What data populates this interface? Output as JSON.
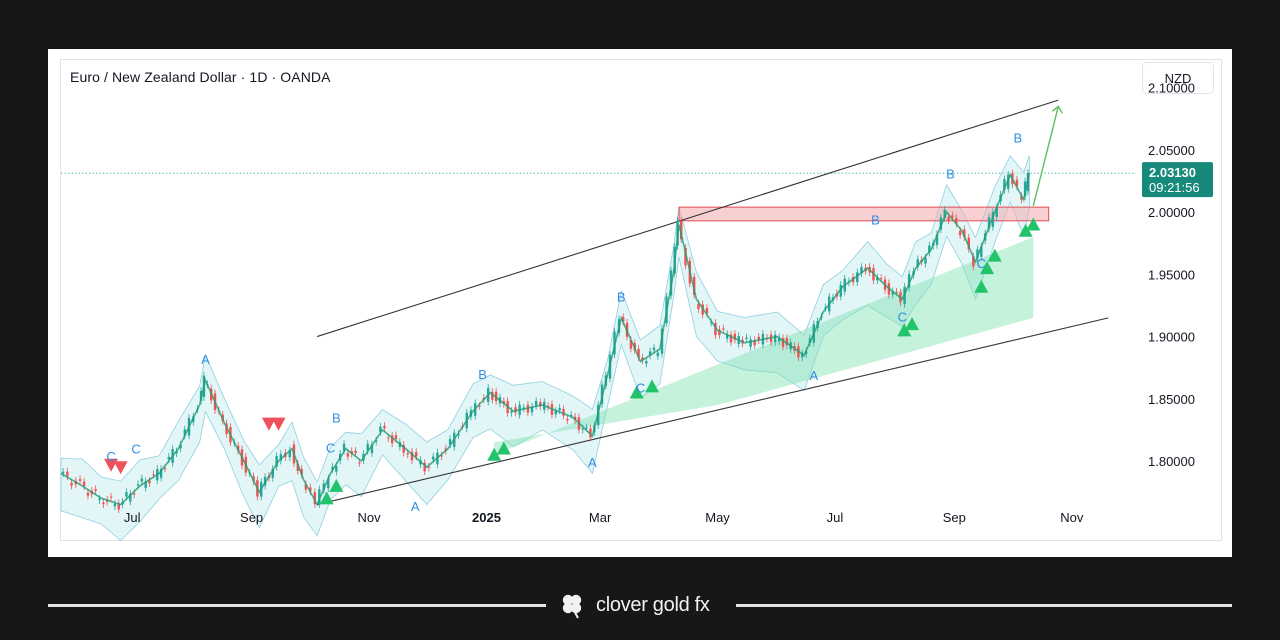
{
  "header": {
    "title": "Euro / New Zealand Dollar · 1D · OANDA",
    "currency": "NZD"
  },
  "price_tag": {
    "price": "2.03130",
    "countdown": "09:21:56",
    "color": "#16897a"
  },
  "footer": {
    "brand": "clover gold fx"
  },
  "chart_data": {
    "type": "line",
    "symbol": "EURNZD",
    "timeframe": "1D",
    "ylim": [
      1.755,
      2.115
    ],
    "y_ticks": [
      "2.10000",
      "2.05000",
      "2.00000",
      "1.95000",
      "1.90000",
      "1.85000",
      "1.80000"
    ],
    "y_tick_values": [
      2.1,
      2.05,
      2.0,
      1.95,
      1.9,
      1.85,
      1.8
    ],
    "xlim": [
      "2024-05-25",
      "2025-11-25"
    ],
    "x_ticks": [
      {
        "label": "Jul",
        "date": "2024-07-01",
        "bold": false
      },
      {
        "label": "Sep",
        "date": "2024-09-01",
        "bold": false
      },
      {
        "label": "Nov",
        "date": "2024-11-01",
        "bold": false
      },
      {
        "label": "2025",
        "date": "2025-01-01",
        "bold": true
      },
      {
        "label": "Mar",
        "date": "2025-03-01",
        "bold": false
      },
      {
        "label": "May",
        "date": "2025-05-01",
        "bold": false
      },
      {
        "label": "Jul",
        "date": "2025-07-01",
        "bold": false
      },
      {
        "label": "Sep",
        "date": "2025-09-01",
        "bold": false
      },
      {
        "label": "Nov",
        "date": "2025-11-01",
        "bold": false
      }
    ],
    "price_series": [
      [
        "2024-05-25",
        1.79
      ],
      [
        "2024-06-05",
        1.78
      ],
      [
        "2024-06-15",
        1.77
      ],
      [
        "2024-06-25",
        1.765
      ],
      [
        "2024-07-05",
        1.78
      ],
      [
        "2024-07-15",
        1.79
      ],
      [
        "2024-07-25",
        1.81
      ],
      [
        "2024-08-05",
        1.845
      ],
      [
        "2024-08-08",
        1.865
      ],
      [
        "2024-08-18",
        1.83
      ],
      [
        "2024-08-28",
        1.8
      ],
      [
        "2024-09-05",
        1.775
      ],
      [
        "2024-09-15",
        1.8
      ],
      [
        "2024-09-22",
        1.81
      ],
      [
        "2024-09-28",
        1.785
      ],
      [
        "2024-10-05",
        1.765
      ],
      [
        "2024-10-12",
        1.79
      ],
      [
        "2024-10-20",
        1.81
      ],
      [
        "2024-10-28",
        1.8
      ],
      [
        "2024-11-08",
        1.825
      ],
      [
        "2024-11-20",
        1.81
      ],
      [
        "2024-12-01",
        1.795
      ],
      [
        "2024-12-12",
        1.81
      ],
      [
        "2024-12-25",
        1.84
      ],
      [
        "2025-01-03",
        1.855
      ],
      [
        "2025-01-15",
        1.84
      ],
      [
        "2025-01-30",
        1.845
      ],
      [
        "2025-02-15",
        1.835
      ],
      [
        "2025-02-25",
        1.82
      ],
      [
        "2025-03-05",
        1.87
      ],
      [
        "2025-03-12",
        1.915
      ],
      [
        "2025-03-22",
        1.88
      ],
      [
        "2025-04-01",
        1.89
      ],
      [
        "2025-04-08",
        1.95
      ],
      [
        "2025-04-11",
        1.99
      ],
      [
        "2025-04-20",
        1.93
      ],
      [
        "2025-05-01",
        1.905
      ],
      [
        "2025-05-15",
        1.895
      ],
      [
        "2025-06-01",
        1.9
      ],
      [
        "2025-06-15",
        1.885
      ],
      [
        "2025-06-25",
        1.92
      ],
      [
        "2025-07-05",
        1.94
      ],
      [
        "2025-07-18",
        1.955
      ],
      [
        "2025-07-28",
        1.94
      ],
      [
        "2025-08-05",
        1.93
      ],
      [
        "2025-08-12",
        1.955
      ],
      [
        "2025-08-20",
        1.97
      ],
      [
        "2025-08-28",
        2.0
      ],
      [
        "2025-09-05",
        1.985
      ],
      [
        "2025-09-12",
        1.96
      ],
      [
        "2025-09-22",
        2.0
      ],
      [
        "2025-09-30",
        2.03
      ],
      [
        "2025-10-07",
        2.01
      ],
      [
        "2025-10-10",
        2.0313
      ]
    ],
    "channel": {
      "upper": [
        [
          "2024-10-05",
          1.9
        ],
        [
          "2025-10-25",
          2.09
        ]
      ],
      "lower": [
        [
          "2024-10-05",
          1.765
        ],
        [
          "2025-11-20",
          1.915
        ]
      ]
    },
    "resistance_zone": {
      "from": "2025-04-11",
      "to": "2025-10-20",
      "y_low": 1.993,
      "y_high": 2.004
    },
    "projection_arrow": [
      [
        "2025-10-12",
        2.005
      ],
      [
        "2025-10-25",
        2.085
      ]
    ],
    "wave_labels": [
      {
        "text": "A",
        "date": "2024-08-08",
        "price": 1.878
      },
      {
        "text": "C",
        "date": "2024-06-20",
        "price": 1.8
      },
      {
        "text": "C",
        "date": "2024-07-03",
        "price": 1.806
      },
      {
        "text": "B",
        "date": "2024-10-15",
        "price": 1.831
      },
      {
        "text": "C",
        "date": "2024-10-12",
        "price": 1.807
      },
      {
        "text": "A",
        "date": "2024-11-25",
        "price": 1.76
      },
      {
        "text": "B",
        "date": "2024-12-30",
        "price": 1.866
      },
      {
        "text": "A",
        "date": "2025-02-25",
        "price": 1.795
      },
      {
        "text": "B",
        "date": "2025-03-12",
        "price": 1.928
      },
      {
        "text": "C",
        "date": "2025-03-22",
        "price": 1.855
      },
      {
        "text": "A",
        "date": "2025-06-20",
        "price": 1.865
      },
      {
        "text": "B",
        "date": "2025-07-22",
        "price": 1.99
      },
      {
        "text": "C",
        "date": "2025-08-05",
        "price": 1.912
      },
      {
        "text": "B",
        "date": "2025-08-30",
        "price": 2.027
      },
      {
        "text": "C",
        "date": "2025-09-15",
        "price": 1.955
      },
      {
        "text": "B",
        "date": "2025-10-04",
        "price": 2.056
      }
    ],
    "buy_signals": [
      "2024-10-10",
      "2024-10-15",
      "2025-01-05",
      "2025-01-10",
      "2025-03-20",
      "2025-03-28",
      "2025-08-06",
      "2025-08-10",
      "2025-09-15",
      "2025-09-18",
      "2025-09-22",
      "2025-10-08",
      "2025-10-12"
    ],
    "buy_signal_prices": [
      1.77,
      1.78,
      1.805,
      1.81,
      1.855,
      1.86,
      1.905,
      1.91,
      1.94,
      1.955,
      1.965,
      1.985,
      1.99
    ],
    "sell_signals": [
      "2024-06-20",
      "2024-06-25",
      "2024-09-10",
      "2024-09-15"
    ],
    "sell_signal_prices": [
      1.797,
      1.795,
      1.83,
      1.83
    ],
    "colors": {
      "up": "#26a69a",
      "down": "#ef5350",
      "channel": "#333333",
      "zone": "#f4a9ad",
      "wave": "#2f8fe0",
      "arrow": "#5cbf62",
      "signal_up": "#21c46b",
      "signal_down": "#f0505a"
    }
  }
}
